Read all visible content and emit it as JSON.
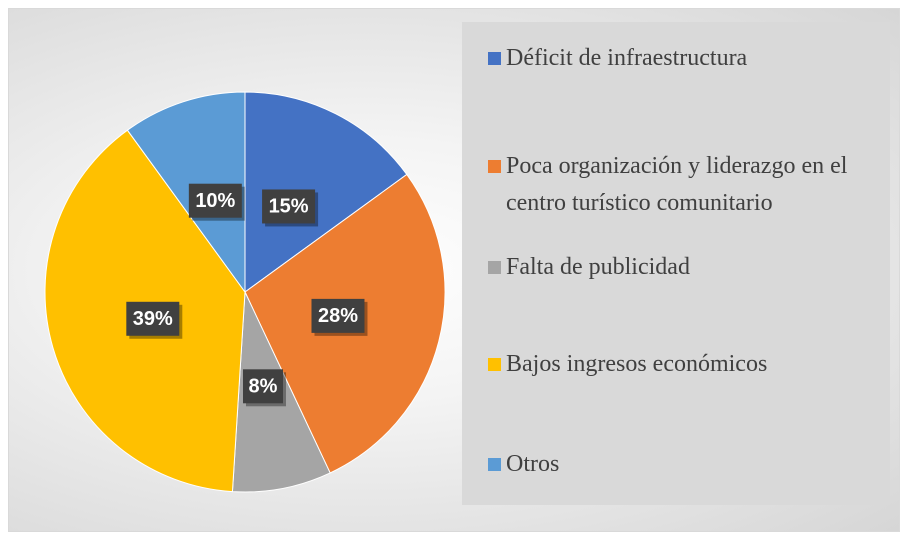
{
  "chart_data": {
    "type": "pie",
    "categories": [
      "Déficit de infraestructura",
      "Poca organización y liderazgo en el centro turístico comunitario",
      "Falta de publicidad",
      "Bajos ingresos económicos",
      "Otros"
    ],
    "values": [
      15,
      28,
      8,
      39,
      10
    ],
    "value_labels": [
      "15%",
      "28%",
      "8%",
      "39%",
      "10%"
    ],
    "colors": [
      "#4472c4",
      "#ed7d31",
      "#a5a5a5",
      "#ffc000",
      "#5b9bd5"
    ],
    "legend": "right"
  }
}
